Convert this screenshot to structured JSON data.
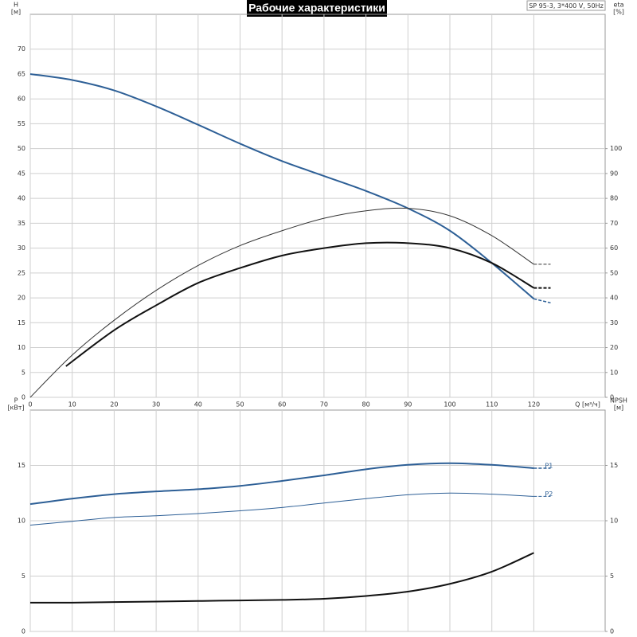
{
  "chart_data": [
    {
      "type": "line",
      "title": "Рабочие характеристики",
      "subtitle": "SP 95-3, 3*400 V, 50Hz",
      "ylabel": "H",
      "ylabel_unit": "[м]",
      "y2label": "eta",
      "y2label_unit": "[%]",
      "xlabel": "Q [м³/ч]",
      "xlim": [
        0,
        137
      ],
      "xticks": [
        0,
        10,
        20,
        30,
        40,
        50,
        60,
        70,
        80,
        90,
        100,
        110,
        120
      ],
      "ylim": [
        0,
        77
      ],
      "yticks": [
        0,
        5,
        10,
        15,
        20,
        25,
        30,
        35,
        40,
        45,
        50,
        55,
        60,
        65,
        70
      ],
      "y2lim": [
        0,
        154
      ],
      "y2ticks": [
        0,
        10,
        20,
        30,
        40,
        50,
        60,
        70,
        80,
        90,
        100
      ],
      "grid": true,
      "series": [
        {
          "color": "#2d5f96",
          "width": 2,
          "x": [
            0,
            10,
            20,
            30,
            40,
            50,
            60,
            70,
            80,
            90,
            100,
            110,
            120
          ],
          "values": [
            65,
            63.8,
            61.7,
            58.5,
            54.8,
            51,
            47.5,
            44.5,
            41.5,
            38,
            33.5,
            27,
            19.8
          ]
        },
        {
          "color": "#2d5f96",
          "width": 1.5,
          "style": "dashed",
          "x": [
            120,
            124
          ],
          "values": [
            19.8,
            19
          ]
        },
        {
          "color": "#333333",
          "width": 1,
          "axis": "y2",
          "x": [
            0,
            10,
            20,
            30,
            40,
            50,
            60,
            70,
            80,
            90,
            100,
            110,
            120
          ],
          "values": [
            0,
            17,
            31,
            43,
            53,
            61,
            67,
            72,
            75,
            76,
            73,
            65,
            53.5
          ]
        },
        {
          "color": "#333333",
          "width": 1,
          "style": "dashed",
          "axis": "y2",
          "x": [
            120,
            124
          ],
          "values": [
            53.5,
            53.5
          ]
        },
        {
          "color": "#111111",
          "width": 2,
          "axis": "y2",
          "x": [
            8.5,
            20,
            30,
            40,
            50,
            60,
            70,
            80,
            90,
            100,
            110,
            120
          ],
          "values": [
            12.5,
            27,
            37,
            46,
            52,
            57,
            60,
            62,
            62,
            60,
            54,
            44
          ]
        },
        {
          "color": "#111111",
          "width": 2,
          "style": "dashed",
          "axis": "y2",
          "x": [
            120,
            124
          ],
          "values": [
            44,
            44
          ]
        }
      ]
    },
    {
      "type": "line",
      "ylabel": "P",
      "ylabel_unit": "[кВт]",
      "y2label": "NPSH",
      "y2label_unit": "[м]",
      "xlim": [
        0,
        137
      ],
      "xticks": [
        0,
        10,
        20,
        30,
        40,
        50,
        60,
        70,
        80,
        90,
        100,
        110,
        120
      ],
      "ylim": [
        0,
        20
      ],
      "yticks": [
        0,
        5,
        10,
        15
      ],
      "y2lim": [
        0,
        20
      ],
      "y2ticks": [
        0,
        5,
        10,
        15
      ],
      "grid": true,
      "series": [
        {
          "name": "P1",
          "color": "#2d5f96",
          "width": 2,
          "x": [
            0,
            10,
            20,
            30,
            40,
            50,
            60,
            70,
            80,
            90,
            100,
            110,
            120
          ],
          "values": [
            11.5,
            12,
            12.4,
            12.65,
            12.85,
            13.15,
            13.6,
            14.1,
            14.65,
            15.05,
            15.2,
            15.05,
            14.75
          ]
        },
        {
          "color": "#2d5f96",
          "width": 1.5,
          "style": "dashed",
          "x": [
            120,
            124
          ],
          "values": [
            14.75,
            14.75
          ]
        },
        {
          "name": "P2",
          "color": "#2d5f96",
          "width": 1,
          "x": [
            0,
            10,
            20,
            30,
            40,
            50,
            60,
            70,
            80,
            90,
            100,
            110,
            120
          ],
          "values": [
            9.6,
            9.95,
            10.3,
            10.45,
            10.65,
            10.9,
            11.2,
            11.6,
            12,
            12.35,
            12.5,
            12.4,
            12.2
          ]
        },
        {
          "color": "#2d5f96",
          "width": 1,
          "style": "dashed",
          "x": [
            120,
            124
          ],
          "values": [
            12.2,
            12.2
          ]
        },
        {
          "color": "#111111",
          "width": 2,
          "axis": "y2",
          "x": [
            0,
            10,
            20,
            30,
            40,
            50,
            60,
            70,
            80,
            90,
            100,
            110,
            120
          ],
          "values": [
            2.6,
            2.6,
            2.65,
            2.7,
            2.75,
            2.8,
            2.85,
            2.95,
            3.2,
            3.6,
            4.3,
            5.4,
            7.1
          ]
        }
      ]
    }
  ]
}
